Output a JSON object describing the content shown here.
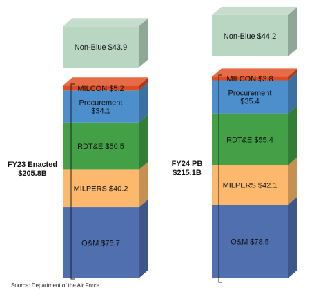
{
  "chart_data": {
    "type": "bar",
    "subtype": "stacked-3d",
    "categories": [
      "FY23 Enacted $205.8B",
      "FY24 PB $215.1B"
    ],
    "stacks": [
      {
        "category_lines": [
          "FY23 Enacted",
          "$205.8B"
        ],
        "segments": [
          {
            "name": "O&M",
            "value": 75.7,
            "label_lines": [
              "O&M $75.7"
            ]
          },
          {
            "name": "MILPERS",
            "value": 40.2,
            "label_lines": [
              "MILPERS $40.2"
            ]
          },
          {
            "name": "RDT&E",
            "value": 50.5,
            "label_lines": [
              "RDT&E $50.5"
            ]
          },
          {
            "name": "Procurement",
            "value": 34.1,
            "label_lines": [
              "Procurement",
              "$34.1"
            ]
          },
          {
            "name": "MILCON",
            "value": 5.2,
            "label_lines": [
              "MILCON $5.2"
            ]
          }
        ],
        "detached": {
          "name": "Non-Blue",
          "value": 43.9,
          "label_lines": [
            "Non-Blue $43.9"
          ]
        }
      },
      {
        "category_lines": [
          "FY24 PB",
          "$215.1B"
        ],
        "segments": [
          {
            "name": "O&M",
            "value": 78.5,
            "label_lines": [
              "O&M $78.5"
            ]
          },
          {
            "name": "MILPERS",
            "value": 42.1,
            "label_lines": [
              "MILPERS $42.1"
            ]
          },
          {
            "name": "RDT&E",
            "value": 55.4,
            "label_lines": [
              "RDT&E $55.4"
            ]
          },
          {
            "name": "Procurement",
            "value": 35.4,
            "label_lines": [
              "Procurement",
              "$35.4"
            ]
          },
          {
            "name": "MILCON",
            "value": 3.8,
            "label_lines": [
              "MILCON $3.8"
            ]
          }
        ],
        "detached": {
          "name": "Non-Blue",
          "value": 44.2,
          "label_lines": [
            "Non-Blue $44.2"
          ]
        }
      }
    ],
    "colors": {
      "O&M": "#4f6fae",
      "MILPERS": "#fcb86c",
      "RDT&E": "#43a046",
      "Procurement": "#4d8fcd",
      "MILCON": "#e04a1f",
      "Non-Blue": "#b9d6c3"
    },
    "title": "",
    "xlabel": "",
    "ylabel": "",
    "grid": false,
    "legend": "none"
  },
  "source_text": "Source: Department of the Air Force"
}
